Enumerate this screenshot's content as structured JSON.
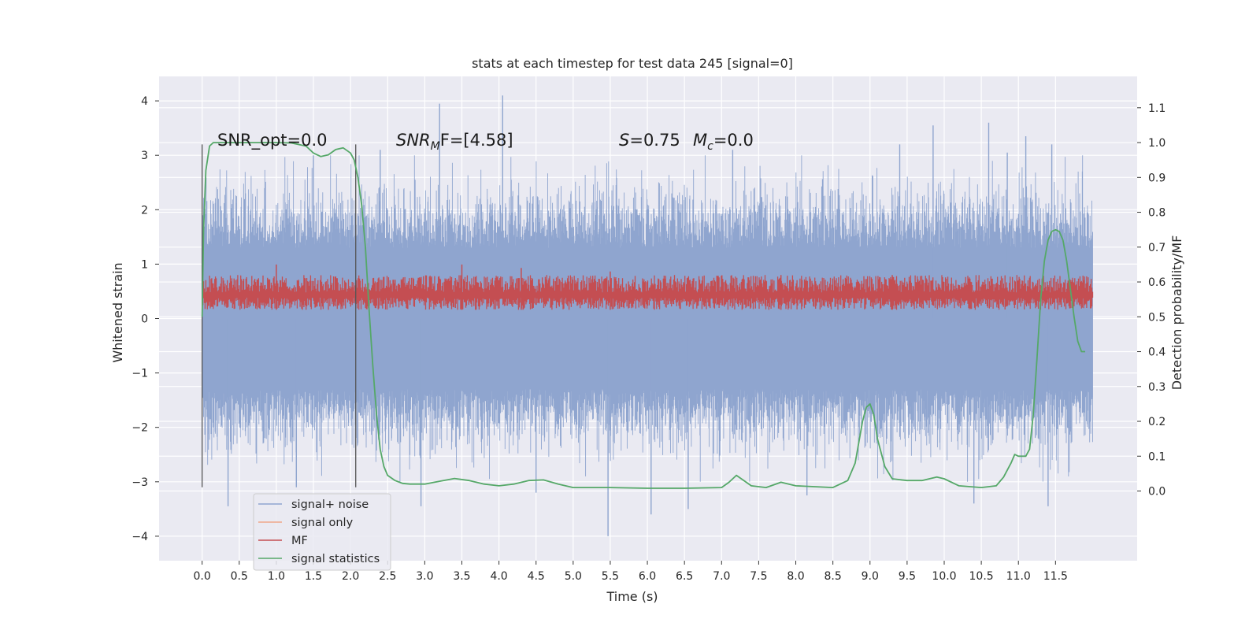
{
  "chart_data": {
    "type": "line",
    "title": "stats at each timestep for test data 245 [signal=0]",
    "xlabel": "Time (s)",
    "ylabel": "Whitened strain",
    "y2label": "Detection probability/MF",
    "xlim": [
      -0.58,
      12.6
    ],
    "ylim": [
      -4.45,
      4.45
    ],
    "y2lim": [
      -0.2,
      1.19
    ],
    "x_ticks": [
      0.0,
      0.5,
      1.0,
      1.5,
      2.0,
      2.5,
      3.0,
      3.5,
      4.0,
      4.5,
      5.0,
      5.5,
      6.0,
      6.5,
      7.0,
      7.5,
      8.0,
      8.5,
      9.0,
      9.5,
      10.0,
      10.5,
      11.0,
      11.5
    ],
    "x_tick_labels": [
      "0.0",
      "0.5",
      "1.0",
      "1.5",
      "2.0",
      "2.5",
      "3.0",
      "3.5",
      "4.0",
      "4.5",
      "5.0",
      "5.5",
      "6.0",
      "6.5",
      "7.0",
      "7.5",
      "8.0",
      "8.5",
      "9.0",
      "9.5",
      "10.0",
      "10.5",
      "11.0",
      "11.5"
    ],
    "y_ticks": [
      -4,
      -3,
      -2,
      -1,
      0,
      1,
      2,
      3,
      4
    ],
    "y_tick_labels": [
      "−4",
      "−3",
      "−2",
      "−1",
      "0",
      "1",
      "2",
      "3",
      "4"
    ],
    "y2_ticks": [
      0.0,
      0.1,
      0.2,
      0.3,
      0.4,
      0.5,
      0.6,
      0.7,
      0.8,
      0.9,
      1.0,
      1.1
    ],
    "y2_tick_labels": [
      "0.0",
      "0.1",
      "0.2",
      "0.3",
      "0.4",
      "0.5",
      "0.6",
      "0.7",
      "0.8",
      "0.9",
      "1.0",
      "1.1"
    ],
    "grid": true,
    "legend_placement": "lower-left",
    "noise": {
      "x_range": [
        0.0,
        12.0
      ],
      "core_half_width": 1.3,
      "spikes": [
        {
          "x": 0.35,
          "y": -3.45
        },
        {
          "x": 1.27,
          "y": -3.1
        },
        {
          "x": 1.5,
          "y": 3.0
        },
        {
          "x": 2.4,
          "y": 3.1
        },
        {
          "x": 2.95,
          "y": -3.45
        },
        {
          "x": 3.2,
          "y": 3.95
        },
        {
          "x": 4.05,
          "y": 4.1
        },
        {
          "x": 4.05,
          "y": 3.2
        },
        {
          "x": 4.5,
          "y": -3.2
        },
        {
          "x": 5.47,
          "y": -4.0
        },
        {
          "x": 6.05,
          "y": -3.6
        },
        {
          "x": 6.55,
          "y": -3.5
        },
        {
          "x": 7.15,
          "y": 3.1
        },
        {
          "x": 8.15,
          "y": -3.25
        },
        {
          "x": 9.4,
          "y": 3.2
        },
        {
          "x": 9.85,
          "y": 3.55
        },
        {
          "x": 10.4,
          "y": -3.4
        },
        {
          "x": 10.6,
          "y": 3.6
        },
        {
          "x": 10.85,
          "y": 3.05
        },
        {
          "x": 11.1,
          "y": 3.35
        },
        {
          "x": 11.4,
          "y": -3.45
        },
        {
          "x": 11.45,
          "y": 3.2
        }
      ]
    },
    "series": [
      {
        "name": "signal+ noise",
        "color": "#8fa5cf"
      },
      {
        "name": "signal only",
        "color": "#f0a88a"
      },
      {
        "name": "MF",
        "color": "#c44e52",
        "band_y2": [
          0.52,
          0.62
        ],
        "peaks": [
          {
            "x": 1.0,
            "y2": 0.65
          },
          {
            "x": 3.5,
            "y2": 0.65
          },
          {
            "x": 4.3,
            "y2": 0.64
          },
          {
            "x": 5.5,
            "y2": 0.63
          },
          {
            "x": 7.8,
            "y2": 0.62
          },
          {
            "x": 9.3,
            "y2": 0.62
          }
        ]
      },
      {
        "name": "signal statistics",
        "color": "#55a868",
        "x": [
          0.0,
          0.02,
          0.05,
          0.1,
          0.15,
          0.2,
          0.3,
          0.5,
          1.0,
          1.2,
          1.4,
          1.5,
          1.6,
          1.7,
          1.8,
          1.9,
          2.0,
          2.05,
          2.1,
          2.15,
          2.2,
          2.25,
          2.3,
          2.35,
          2.4,
          2.45,
          2.5,
          2.6,
          2.7,
          2.8,
          3.0,
          3.2,
          3.4,
          3.6,
          3.8,
          4.0,
          4.2,
          4.4,
          4.6,
          4.8,
          5.0,
          5.5,
          6.0,
          6.5,
          7.0,
          7.1,
          7.2,
          7.3,
          7.4,
          7.6,
          7.8,
          8.0,
          8.5,
          8.7,
          8.8,
          8.9,
          8.95,
          9.0,
          9.05,
          9.1,
          9.2,
          9.3,
          9.5,
          9.7,
          9.9,
          10.0,
          10.2,
          10.5,
          10.7,
          10.8,
          10.9,
          10.95,
          11.0,
          11.1,
          11.15,
          11.2,
          11.25,
          11.3,
          11.35,
          11.4,
          11.45,
          11.5,
          11.55,
          11.6,
          11.65,
          11.7,
          11.75,
          11.8,
          11.85,
          11.9
        ],
        "y2": [
          0.5,
          0.75,
          0.92,
          0.99,
          1.0,
          1.0,
          1.0,
          1.0,
          1.0,
          0.999,
          0.99,
          0.97,
          0.96,
          0.965,
          0.98,
          0.985,
          0.97,
          0.95,
          0.9,
          0.82,
          0.7,
          0.52,
          0.36,
          0.22,
          0.12,
          0.07,
          0.045,
          0.03,
          0.022,
          0.02,
          0.02,
          0.028,
          0.036,
          0.03,
          0.02,
          0.015,
          0.02,
          0.03,
          0.032,
          0.02,
          0.01,
          0.01,
          0.008,
          0.008,
          0.01,
          0.025,
          0.045,
          0.03,
          0.015,
          0.01,
          0.025,
          0.015,
          0.01,
          0.03,
          0.08,
          0.2,
          0.24,
          0.25,
          0.22,
          0.15,
          0.07,
          0.035,
          0.03,
          0.03,
          0.04,
          0.035,
          0.015,
          0.01,
          0.015,
          0.04,
          0.08,
          0.105,
          0.1,
          0.1,
          0.12,
          0.22,
          0.38,
          0.55,
          0.66,
          0.72,
          0.745,
          0.75,
          0.745,
          0.72,
          0.66,
          0.58,
          0.5,
          0.43,
          0.4,
          0.4
        ]
      }
    ],
    "vlines": [
      {
        "x": 0.0,
        "y_range": [
          -3.1,
          3.2
        ],
        "color": "#555555"
      },
      {
        "x": 2.07,
        "y_range": [
          -3.1,
          3.2
        ],
        "color": "#555555"
      }
    ],
    "annotations": {
      "snr_opt": "SNR_opt=0.0",
      "snr_mf_prefix": "SNR",
      "snr_mf_sub": "M",
      "snr_mf_suffix": "F=[4.58]",
      "s_label": "S",
      "s_value": "=0.75",
      "mc_label": "M",
      "mc_sub": "c",
      "mc_value": "=0.0"
    }
  }
}
